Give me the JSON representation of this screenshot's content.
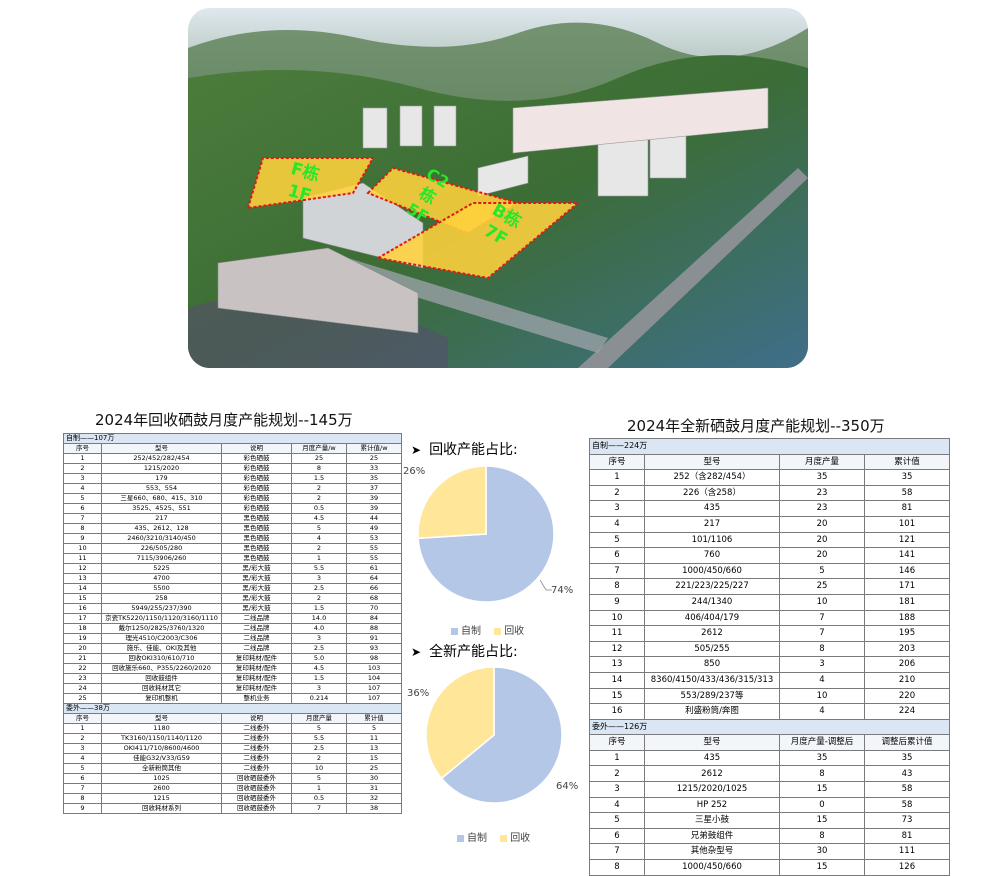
{
  "colors": {
    "self_made": "#b4c7e7",
    "recycled": "#ffe699",
    "table_section": "#dae6f3",
    "zone_fill": "#ffd23c",
    "zone_label": "#28e628"
  },
  "aerial": {
    "zones": [
      {
        "key": "f",
        "line1": "F栋",
        "line2": "1F"
      },
      {
        "key": "c",
        "line1": "C2",
        "line2": "栋",
        "line3": "5F"
      },
      {
        "key": "b",
        "line1": "B栋",
        "line2": "7F"
      }
    ]
  },
  "left_panel": {
    "title": "2024年回收硒鼓月度产能规划--145万",
    "self_section": "自制——107万",
    "self_headers": [
      "序号",
      "型号",
      "说明",
      "月度产量/w",
      "累计值/w"
    ],
    "self_rows": [
      [
        "1",
        "252/452/282/454",
        "彩色硒鼓",
        "25",
        "25"
      ],
      [
        "2",
        "1215/2020",
        "彩色硒鼓",
        "8",
        "33"
      ],
      [
        "3",
        "179",
        "彩色硒鼓",
        "1.5",
        "35"
      ],
      [
        "4",
        "553、554",
        "彩色硒鼓",
        "2",
        "37"
      ],
      [
        "5",
        "三星660、680、415、310",
        "彩色硒鼓",
        "2",
        "39"
      ],
      [
        "6",
        "3525、4525、551",
        "彩色硒鼓",
        "0.5",
        "39"
      ],
      [
        "7",
        "217",
        "黑色硒鼓",
        "4.5",
        "44"
      ],
      [
        "8",
        "435、2612、128",
        "黑色硒鼓",
        "5",
        "49"
      ],
      [
        "9",
        "2460/3210/3140/450",
        "黑色硒鼓",
        "4",
        "53"
      ],
      [
        "10",
        "226/505/280",
        "黑色硒鼓",
        "2",
        "55"
      ],
      [
        "11",
        "7115/3906/260",
        "黑色硒鼓",
        "1",
        "55"
      ],
      [
        "12",
        "5225",
        "黑/彩大鼓",
        "5.5",
        "61"
      ],
      [
        "13",
        "4700",
        "黑/彩大鼓",
        "3",
        "64"
      ],
      [
        "14",
        "5500",
        "黑/彩大鼓",
        "2.5",
        "66"
      ],
      [
        "15",
        "258",
        "黑/彩大鼓",
        "2",
        "68"
      ],
      [
        "16",
        "5949/255/237/390",
        "黑/彩大鼓",
        "1.5",
        "70"
      ],
      [
        "17",
        "京瓷TK5220/1150/1120/3160/1110",
        "二线品牌",
        "14.0",
        "84"
      ],
      [
        "18",
        "戴尔1250/2825/3760/1320",
        "二线品牌",
        "4.0",
        "88"
      ],
      [
        "19",
        "理光4510/C2003/C306",
        "二线品牌",
        "3",
        "91"
      ],
      [
        "20",
        "施乐、佳能、OKI及其他",
        "二线品牌",
        "2.5",
        "93"
      ],
      [
        "21",
        "回收OKI310/610/710",
        "复印耗材/配件",
        "5.0",
        "98"
      ],
      [
        "22",
        "回收施乐660、P355/2260/2020",
        "复印耗材/配件",
        "4.5",
        "103"
      ],
      [
        "23",
        "回收鼓组件",
        "复印耗材/配件",
        "1.5",
        "104"
      ],
      [
        "24",
        "回收耗材其它",
        "复印耗材/配件",
        "3",
        "107"
      ],
      [
        "25",
        "复印机整机",
        "整机业务",
        "0.214",
        "107"
      ]
    ],
    "out_section": "委外——38万",
    "out_headers": [
      "序号",
      "型号",
      "说明",
      "月度产量",
      "累计值"
    ],
    "out_rows": [
      [
        "1",
        "1180",
        "二线委外",
        "5",
        "5"
      ],
      [
        "2",
        "TK3160/1150/1140/1120",
        "二线委外",
        "5.5",
        "11"
      ],
      [
        "3",
        "OKI411/710/8600/4600",
        "二线委外",
        "2.5",
        "13"
      ],
      [
        "4",
        "佳能G32/V33/G59",
        "二线委外",
        "2",
        "15"
      ],
      [
        "5",
        "全新粉筒其他",
        "二线委外",
        "10",
        "25"
      ],
      [
        "6",
        "1025",
        "回收硒鼓委外",
        "5",
        "30"
      ],
      [
        "7",
        "2600",
        "回收硒鼓委外",
        "1",
        "31"
      ],
      [
        "8",
        "1215",
        "回收硒鼓委外",
        "0.5",
        "32"
      ],
      [
        "9",
        "回收耗材系列",
        "回收硒鼓委外",
        "7",
        "38"
      ]
    ]
  },
  "chart_data": [
    {
      "type": "pie",
      "title": "回收产能占比:",
      "categories": [
        "自制",
        "回收"
      ],
      "values": [
        74,
        26
      ],
      "labels": [
        "74%",
        "26%"
      ],
      "colors": [
        "#b4c7e7",
        "#ffe699"
      ],
      "legend": "bottom"
    },
    {
      "type": "pie",
      "title": "全新产能占比:",
      "categories": [
        "自制",
        "回收"
      ],
      "values": [
        64,
        36
      ],
      "labels": [
        "64%",
        "36%"
      ],
      "colors": [
        "#b4c7e7",
        "#ffe699"
      ],
      "legend": "bottom"
    }
  ],
  "right_panel": {
    "title": "2024年全新硒鼓月度产能规划--350万",
    "self_section": "自制——224万",
    "self_headers": [
      "序号",
      "型号",
      "月度产量",
      "累计值"
    ],
    "self_rows": [
      [
        "1",
        "252（含282/454）",
        "35",
        "35"
      ],
      [
        "2",
        "226（含258）",
        "23",
        "58"
      ],
      [
        "3",
        "435",
        "23",
        "81"
      ],
      [
        "4",
        "217",
        "20",
        "101"
      ],
      [
        "5",
        "101/1106",
        "20",
        "121"
      ],
      [
        "6",
        "760",
        "20",
        "141"
      ],
      [
        "7",
        "1000/450/660",
        "5",
        "146"
      ],
      [
        "8",
        "221/223/225/227",
        "25",
        "171"
      ],
      [
        "9",
        "244/1340",
        "10",
        "181"
      ],
      [
        "10",
        "406/404/179",
        "7",
        "188"
      ],
      [
        "11",
        "2612",
        "7",
        "195"
      ],
      [
        "12",
        "505/255",
        "8",
        "203"
      ],
      [
        "13",
        "850",
        "3",
        "206"
      ],
      [
        "14",
        "8360/4150/433/436/315/313",
        "4",
        "210"
      ],
      [
        "15",
        "553/289/237等",
        "10",
        "220"
      ],
      [
        "16",
        "利盛粉筒/奔图",
        "4",
        "224"
      ]
    ],
    "out_section": "委外——126万",
    "out_headers": [
      "序号",
      "型号",
      "月度产量-调整后",
      "调整后累计值"
    ],
    "out_rows": [
      [
        "1",
        "435",
        "35",
        "35"
      ],
      [
        "2",
        "2612",
        "8",
        "43"
      ],
      [
        "3",
        "1215/2020/1025",
        "15",
        "58"
      ],
      [
        "4",
        "HP 252",
        "0",
        "58"
      ],
      [
        "5",
        "三星小鼓",
        "15",
        "73"
      ],
      [
        "6",
        "兄弟鼓组件",
        "8",
        "81"
      ],
      [
        "7",
        "其他杂型号",
        "30",
        "111"
      ],
      [
        "8",
        "1000/450/660",
        "15",
        "126"
      ]
    ]
  }
}
